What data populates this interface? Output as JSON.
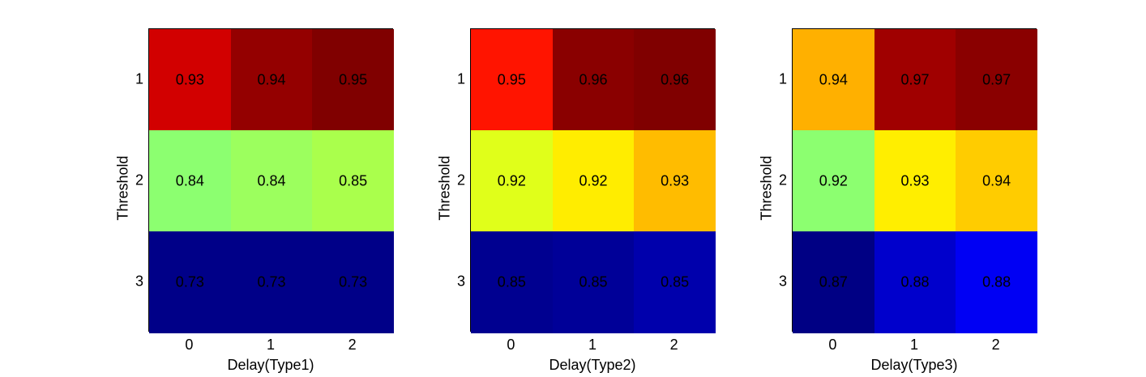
{
  "chart_data": [
    {
      "type": "heatmap",
      "xlabel": "Delay(Type1)",
      "ylabel": "Threshold",
      "x_ticks": [
        "0",
        "1",
        "2"
      ],
      "y_ticks": [
        "1",
        "2",
        "3"
      ],
      "values": [
        [
          0.93,
          0.94,
          0.95
        ],
        [
          0.84,
          0.84,
          0.85
        ],
        [
          0.73,
          0.73,
          0.73
        ]
      ],
      "value_labels": [
        [
          "0.93",
          "0.94",
          "0.95"
        ],
        [
          "0.84",
          "0.84",
          "0.85"
        ],
        [
          "0.73",
          "0.73",
          "0.73"
        ]
      ],
      "colors": [
        [
          "#d20000",
          "#940000",
          "#800000"
        ],
        [
          "#8cff70",
          "#9cff5e",
          "#aaff4c"
        ],
        [
          "#000088",
          "#000088",
          "#000088"
        ]
      ]
    },
    {
      "type": "heatmap",
      "xlabel": "Delay(Type2)",
      "ylabel": "Threshold",
      "x_ticks": [
        "0",
        "1",
        "2"
      ],
      "y_ticks": [
        "1",
        "2",
        "3"
      ],
      "values": [
        [
          0.95,
          0.96,
          0.96
        ],
        [
          0.92,
          0.92,
          0.93
        ],
        [
          0.85,
          0.85,
          0.85
        ]
      ],
      "value_labels": [
        [
          "0.95",
          "0.96",
          "0.96"
        ],
        [
          "0.92",
          "0.92",
          "0.93"
        ],
        [
          "0.85",
          "0.85",
          "0.85"
        ]
      ],
      "colors": [
        [
          "#ff1400",
          "#8a0000",
          "#800000"
        ],
        [
          "#e0ff1a",
          "#ffed00",
          "#ffbc00"
        ],
        [
          "#000090",
          "#000098",
          "#0000ac"
        ]
      ]
    },
    {
      "type": "heatmap",
      "xlabel": "Delay(Type3)",
      "ylabel": "Threshold",
      "x_ticks": [
        "0",
        "1",
        "2"
      ],
      "y_ticks": [
        "1",
        "2",
        "3"
      ],
      "values": [
        [
          0.94,
          0.97,
          0.97
        ],
        [
          0.92,
          0.93,
          0.94
        ],
        [
          0.87,
          0.88,
          0.88
        ]
      ],
      "value_labels": [
        [
          "0.94",
          "0.97",
          "0.97"
        ],
        [
          "0.92",
          "0.93",
          "0.94"
        ],
        [
          "0.87",
          "0.88",
          "0.88"
        ]
      ],
      "colors": [
        [
          "#ffb000",
          "#a00000",
          "#8a0000"
        ],
        [
          "#8cff70",
          "#ffee00",
          "#ffcc00"
        ],
        [
          "#000084",
          "#0000cc",
          "#0000f4"
        ]
      ]
    }
  ]
}
